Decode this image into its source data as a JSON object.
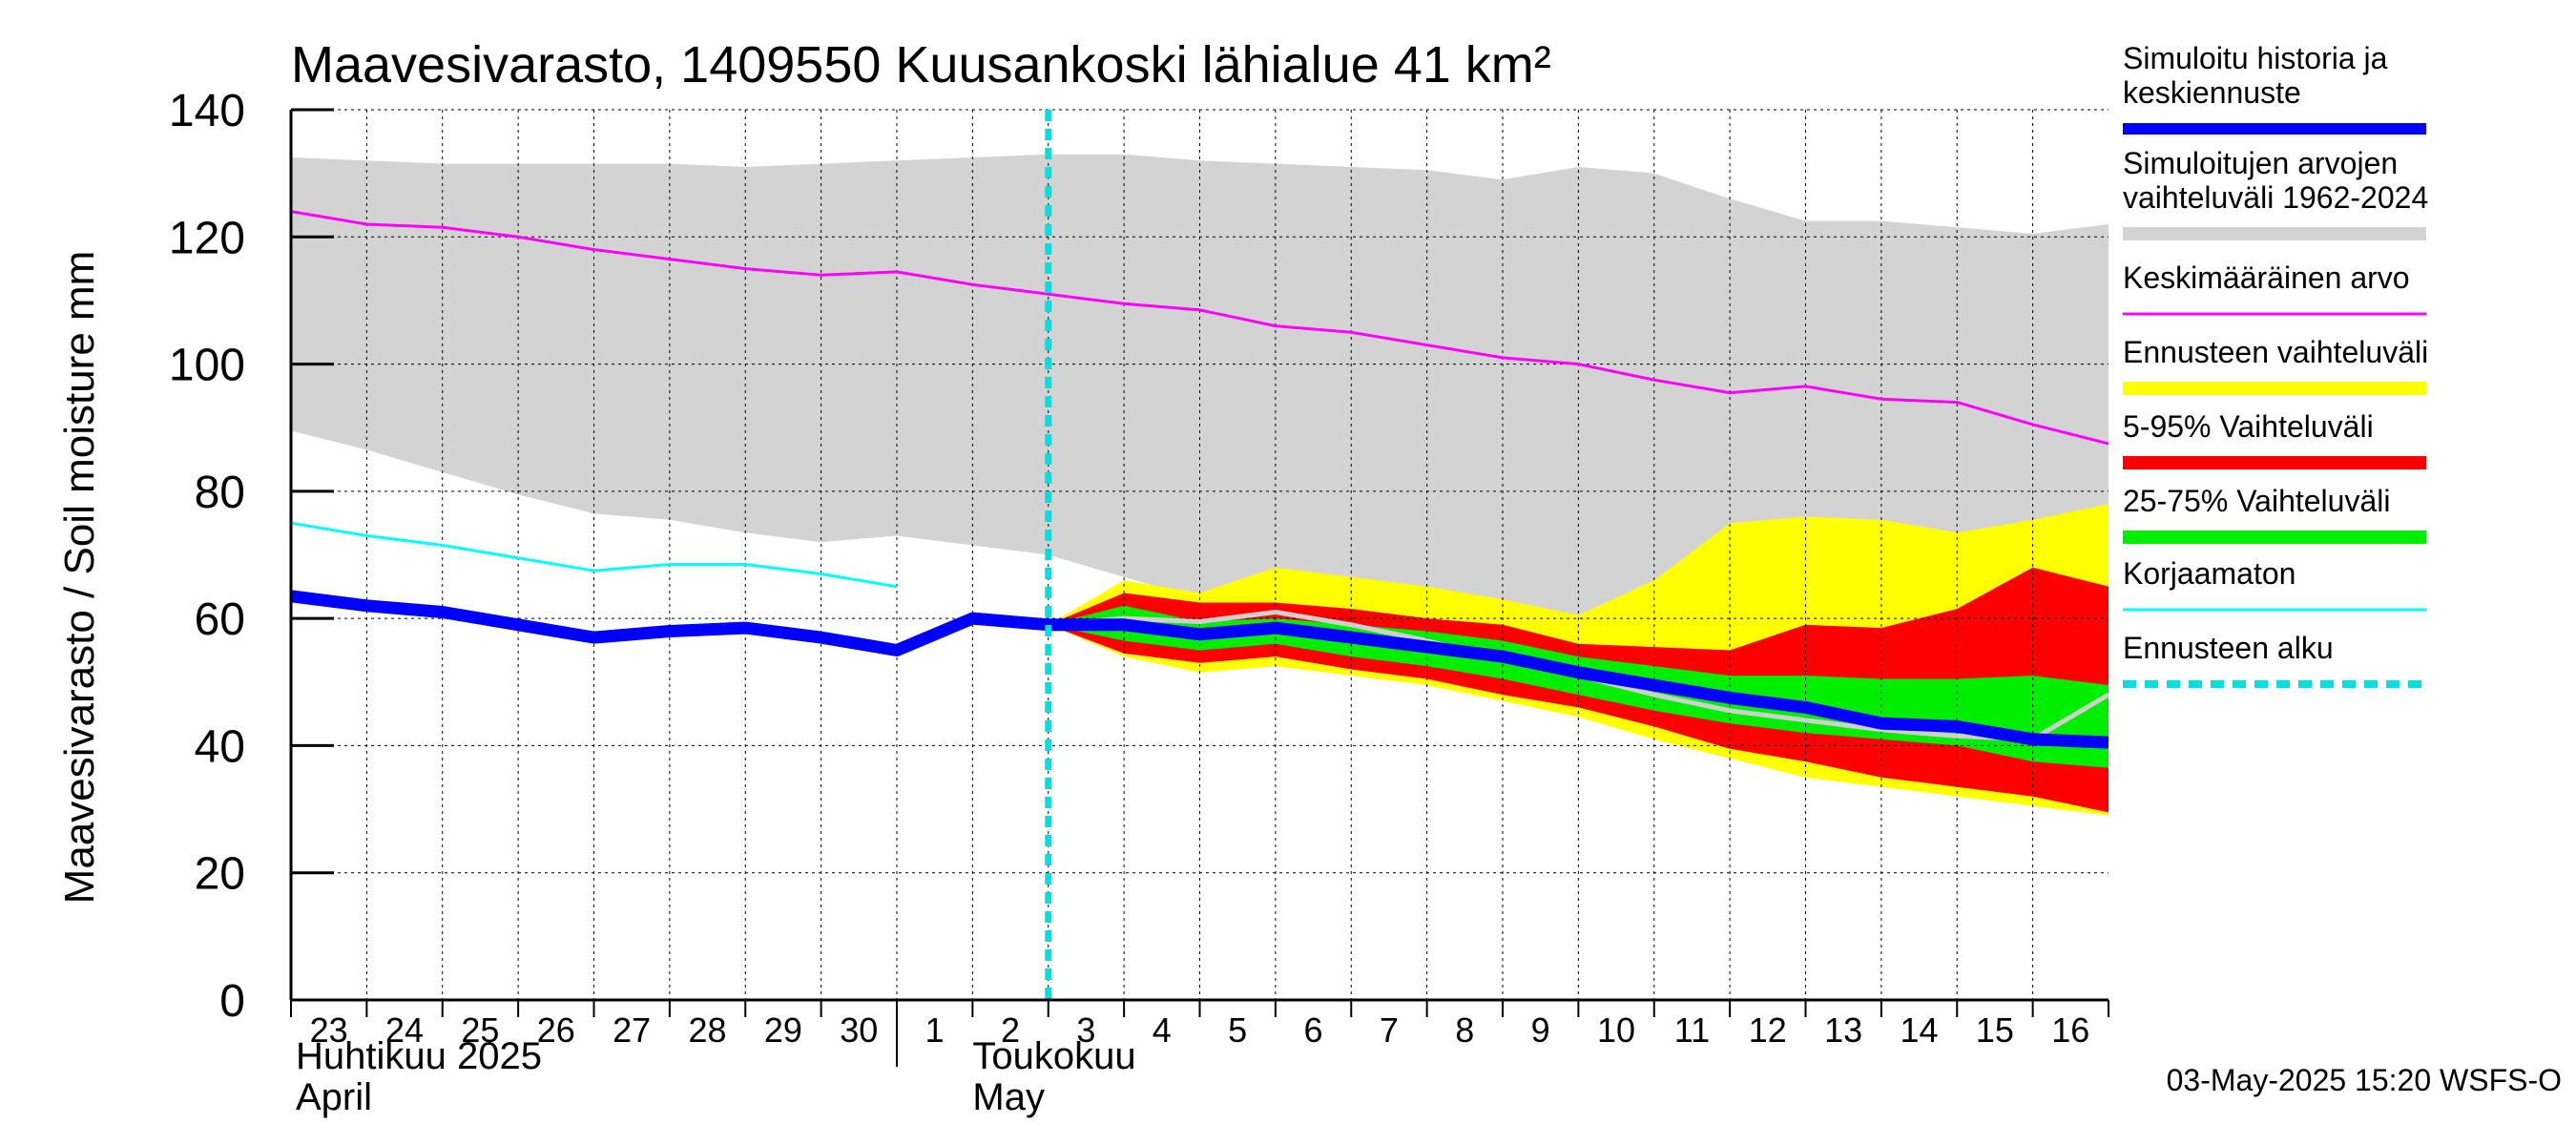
{
  "chart_data": {
    "type": "area",
    "title": "Maavesivarasto, 1409550 Kuusankoski lähialue 41 km²",
    "ylabel": "Maavesivarasto / Soil moisture   mm",
    "ylim": [
      0,
      140
    ],
    "yticks": [
      0,
      20,
      40,
      60,
      80,
      100,
      120,
      140
    ],
    "xlim": [
      0,
      24
    ],
    "day_labels": [
      "23",
      "24",
      "25",
      "26",
      "27",
      "28",
      "29",
      "30",
      "1",
      "2",
      "3",
      "4",
      "5",
      "6",
      "7",
      "8",
      "9",
      "10",
      "11",
      "12",
      "13",
      "14",
      "15",
      "16"
    ],
    "month_labels": [
      {
        "line1": "Huhtikuu  2025",
        "line2": "April"
      },
      {
        "line1": "Toukokuu",
        "line2": "May"
      }
    ],
    "forecast_start_x": 10,
    "timestamp": "03-May-2025 15:20 WSFS-O",
    "legend": [
      {
        "key": "history",
        "label": [
          "Simuloitu historia ja",
          "keskiennuste"
        ],
        "color": "#0000ff"
      },
      {
        "key": "range_hist",
        "label": [
          "Simuloitujen arvojen",
          "vaihteluväli 1962-2024"
        ],
        "color": "#d3d3d3"
      },
      {
        "key": "mean",
        "label": [
          "Keskimääräinen arvo"
        ],
        "color": "#ff00ff"
      },
      {
        "key": "forecast_range",
        "label": [
          "Ennusteen vaihteluväli"
        ],
        "color": "#ffff00"
      },
      {
        "key": "p5_95",
        "label": [
          "5-95% Vaihteluväli"
        ],
        "color": "#ff0000"
      },
      {
        "key": "p25_75",
        "label": [
          "25-75% Vaihteluväli"
        ],
        "color": "#00ee00"
      },
      {
        "key": "uncorrected",
        "label": [
          "Korjaamaton"
        ],
        "color": "#00ffff"
      },
      {
        "key": "forecast_start",
        "label": [
          "Ennusteen alku"
        ],
        "color": "#00e0e0"
      }
    ],
    "series": {
      "hist_range": {
        "x": [
          0,
          1,
          2,
          3,
          4,
          5,
          6,
          7,
          8,
          9,
          10,
          11,
          12,
          13,
          14,
          15,
          16,
          17,
          18,
          19,
          20,
          21,
          22,
          23,
          24
        ],
        "upper": [
          132.5,
          132,
          131.5,
          131.5,
          131.5,
          131.5,
          131,
          131.5,
          132,
          132.5,
          133,
          133,
          132,
          131.5,
          131,
          130.5,
          129,
          131,
          130,
          126,
          122.5,
          122.5,
          121.5,
          120.5,
          122
        ],
        "lower": [
          89.5,
          86.5,
          83,
          79.5,
          76.5,
          75.5,
          73.5,
          72,
          73,
          71.5,
          70,
          66.5,
          63,
          60,
          57,
          55,
          54,
          52.5,
          50,
          46,
          44.5,
          42.5,
          41.5,
          40.5,
          48
        ]
      },
      "mean": {
        "x": [
          0,
          1,
          2,
          3,
          4,
          5,
          6,
          7,
          8,
          9,
          10,
          11,
          12,
          13,
          14,
          15,
          16,
          17,
          18,
          19,
          20,
          21,
          22,
          23,
          24
        ],
        "y": [
          124,
          122,
          121.5,
          120,
          118,
          116.5,
          115,
          114,
          114.5,
          112.5,
          111,
          109.5,
          108.5,
          106,
          105,
          103,
          101,
          100,
          97.5,
          95.5,
          96.5,
          94.5,
          94,
          90.5,
          87.5
        ]
      },
      "uncorrected": {
        "x": [
          0,
          1,
          2,
          3,
          4,
          5,
          6,
          7,
          8
        ],
        "y": [
          75,
          73,
          71.5,
          69.5,
          67.5,
          68.5,
          68.5,
          67,
          65
        ]
      },
      "history": {
        "x": [
          0,
          1,
          2,
          3,
          4,
          5,
          6,
          7,
          8,
          9,
          10
        ],
        "y": [
          63.5,
          62,
          61,
          59,
          57,
          58,
          58.5,
          57,
          55,
          60,
          59
        ]
      },
      "forecast_range": {
        "x": [
          10,
          11,
          12,
          13,
          14,
          15,
          16,
          17,
          18,
          19,
          20,
          21,
          22,
          23,
          24
        ],
        "upper": [
          59,
          66,
          64,
          68,
          66.5,
          65,
          63,
          60.5,
          66,
          75,
          76,
          75.5,
          73.5,
          75.5,
          78
        ],
        "lower": [
          59,
          54,
          51.5,
          52.5,
          51,
          49.5,
          47,
          44.5,
          41,
          38,
          35,
          33.5,
          32,
          30.5,
          29
        ]
      },
      "p5_95": {
        "x": [
          10,
          11,
          12,
          13,
          14,
          15,
          16,
          17,
          18,
          19,
          20,
          21,
          22,
          23,
          24
        ],
        "upper": [
          59,
          64,
          62.5,
          62.5,
          61.5,
          60,
          59,
          56,
          55.5,
          55,
          59,
          58.5,
          61.5,
          68,
          65
        ],
        "lower": [
          59,
          54.5,
          53,
          54,
          52,
          50.5,
          48,
          46,
          43,
          39.5,
          37.5,
          35,
          33.5,
          32,
          29.5
        ]
      },
      "p25_75": {
        "x": [
          10,
          11,
          12,
          13,
          14,
          15,
          16,
          17,
          18,
          19,
          20,
          21,
          22,
          23,
          24
        ],
        "upper": [
          59,
          62,
          59.5,
          60,
          59,
          58,
          56.5,
          54,
          52.5,
          51,
          51,
          50.5,
          50.5,
          51,
          49.5
        ],
        "lower": [
          59,
          56.5,
          55,
          56,
          54,
          52.5,
          50.5,
          48,
          45.5,
          43.5,
          42,
          41,
          40,
          37.5,
          36.5
        ]
      },
      "median_grey": {
        "x": [
          10,
          11,
          12,
          13,
          14,
          15,
          16,
          17,
          18,
          19,
          20,
          21,
          22,
          23,
          24
        ],
        "y": [
          59,
          60,
          59.5,
          61,
          59,
          56.5,
          53.5,
          51,
          48,
          45.5,
          44,
          42.5,
          41.5,
          41,
          48
        ]
      },
      "forecast_mean": {
        "x": [
          10,
          11,
          12,
          13,
          14,
          15,
          16,
          17,
          18,
          19,
          20,
          21,
          22,
          23,
          24
        ],
        "y": [
          59,
          59,
          57.5,
          58.5,
          57,
          55.5,
          54,
          51.5,
          49.5,
          47.5,
          46,
          43.5,
          43,
          41,
          40.5
        ]
      }
    }
  }
}
